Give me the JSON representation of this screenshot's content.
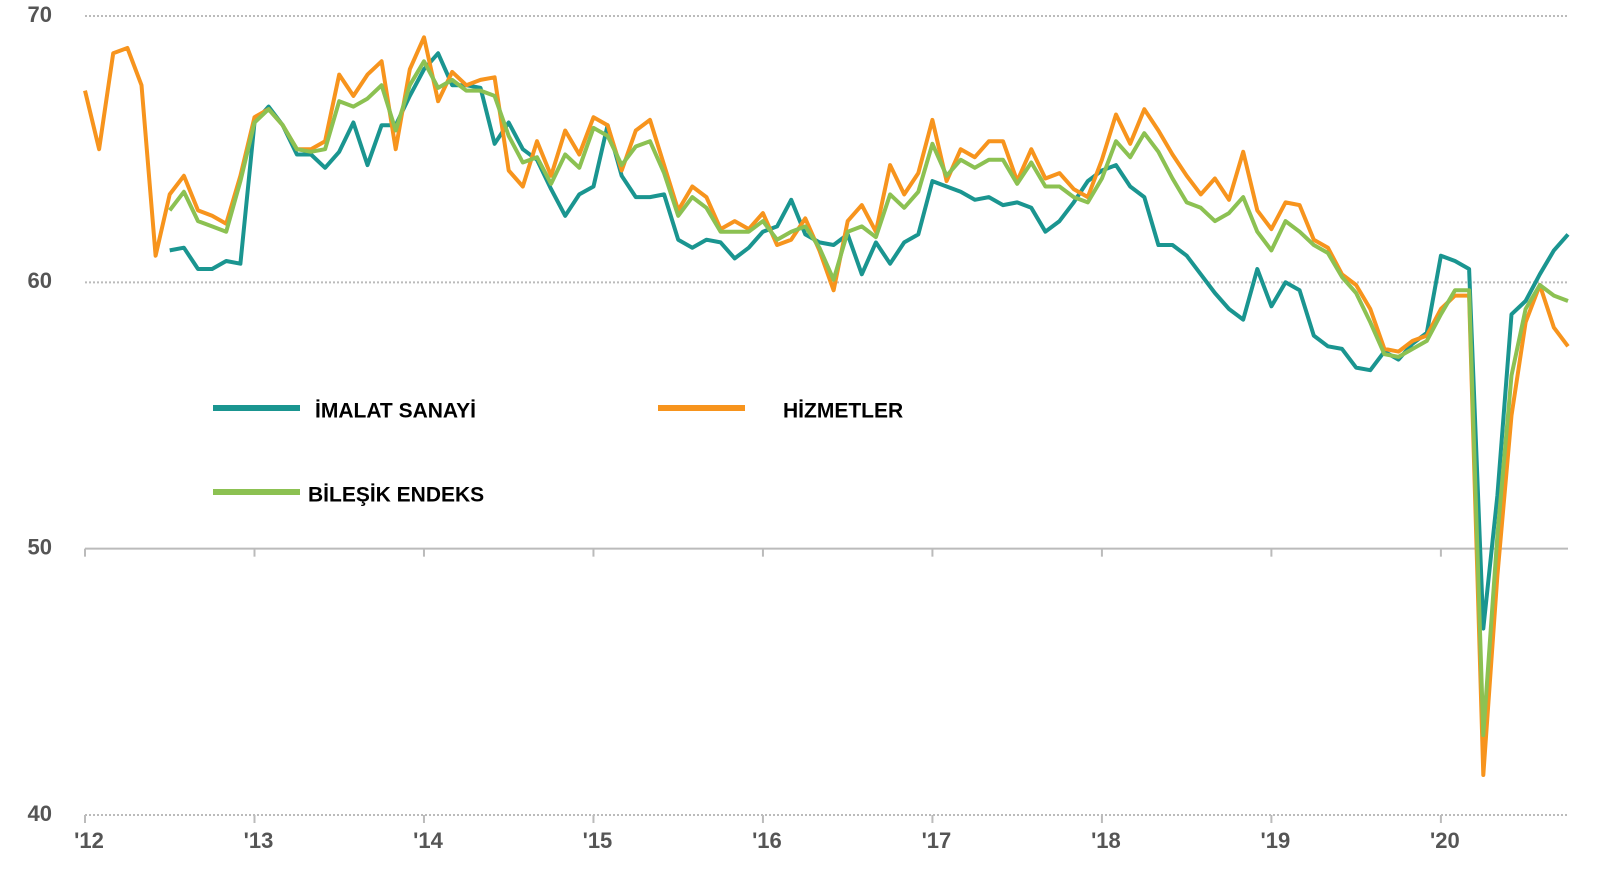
{
  "chart_data": {
    "type": "line",
    "categories": [
      "'12",
      null,
      null,
      null,
      null,
      null,
      null,
      null,
      null,
      null,
      null,
      null,
      "'13",
      null,
      null,
      null,
      null,
      null,
      null,
      null,
      null,
      null,
      null,
      null,
      "'14",
      null,
      null,
      null,
      null,
      null,
      null,
      null,
      null,
      null,
      null,
      null,
      "'15",
      null,
      null,
      null,
      null,
      null,
      null,
      null,
      null,
      null,
      null,
      null,
      "'16",
      null,
      null,
      null,
      null,
      null,
      null,
      null,
      null,
      null,
      null,
      null,
      "'17",
      null,
      null,
      null,
      null,
      null,
      null,
      null,
      null,
      null,
      null,
      null,
      "'18",
      null,
      null,
      null,
      null,
      null,
      null,
      null,
      null,
      null,
      null,
      null,
      "'19",
      null,
      null,
      null,
      null,
      null,
      null,
      null,
      null,
      null,
      null,
      null,
      "'20",
      null,
      null,
      null,
      null,
      null,
      null,
      null,
      null,
      null
    ],
    "series": [
      {
        "name": "İMALAT SANAYİ",
        "color": "#1a9590",
        "values": [
          null,
          null,
          null,
          null,
          null,
          null,
          61.2,
          61.3,
          60.5,
          60.5,
          60.8,
          60.7,
          66.0,
          66.6,
          65.9,
          64.8,
          64.8,
          64.3,
          64.9,
          66.0,
          64.4,
          65.9,
          65.9,
          67.0,
          68.0,
          68.6,
          67.4,
          67.4,
          67.3,
          65.2,
          66.0,
          65.0,
          64.6,
          63.5,
          62.5,
          63.3,
          63.6,
          65.9,
          64.0,
          63.2,
          63.2,
          63.3,
          61.6,
          61.3,
          61.6,
          61.5,
          60.9,
          61.3,
          61.9,
          62.1,
          63.1,
          61.8,
          61.5,
          61.4,
          61.8,
          60.3,
          61.5,
          60.7,
          61.5,
          61.8,
          63.8,
          63.6,
          63.4,
          63.1,
          63.2,
          62.9,
          63.0,
          62.8,
          61.9,
          62.3,
          63.0,
          63.8,
          64.2,
          64.4,
          63.6,
          63.2,
          61.4,
          61.4,
          61.0,
          60.3,
          59.6,
          59.0,
          58.6,
          60.5,
          59.1,
          60.0,
          59.7,
          58.0,
          57.6,
          57.5,
          56.8,
          56.7,
          57.4,
          57.1,
          57.7,
          58.1,
          61.0,
          60.8,
          60.5,
          47.0,
          52.0,
          58.8,
          59.3,
          60.3,
          61.2,
          61.8
        ]
      },
      {
        "name": "HİZMETLER",
        "color": "#f7941d",
        "values": [
          67.2,
          65.0,
          68.6,
          68.8,
          67.4,
          61.0,
          63.3,
          64.0,
          62.7,
          62.5,
          62.2,
          64.0,
          66.2,
          66.5,
          65.9,
          65.0,
          65.0,
          65.3,
          67.8,
          67.0,
          67.8,
          68.3,
          65.0,
          68.0,
          69.2,
          66.8,
          67.9,
          67.4,
          67.6,
          67.7,
          64.2,
          63.6,
          65.3,
          64.0,
          65.7,
          64.8,
          66.2,
          65.9,
          64.2,
          65.7,
          66.1,
          64.4,
          62.7,
          63.6,
          63.2,
          62.0,
          62.3,
          62.0,
          62.6,
          61.4,
          61.6,
          62.4,
          61.2,
          59.7,
          62.3,
          62.9,
          61.9,
          64.4,
          63.3,
          64.1,
          66.1,
          63.8,
          65.0,
          64.7,
          65.3,
          65.3,
          63.8,
          65.0,
          63.9,
          64.1,
          63.5,
          63.2,
          64.6,
          66.3,
          65.2,
          66.5,
          65.7,
          64.8,
          64.0,
          63.3,
          63.9,
          63.1,
          64.9,
          62.7,
          62.0,
          63.0,
          62.9,
          61.6,
          61.3,
          60.3,
          59.9,
          59.0,
          57.5,
          57.4,
          57.8,
          58.0,
          59.0,
          59.5,
          59.5,
          41.5,
          49.0,
          55.0,
          58.5,
          59.9,
          58.3,
          57.6
        ]
      },
      {
        "name": "BİLEŞİK ENDEKS",
        "color": "#8cc152",
        "values": [
          null,
          null,
          null,
          null,
          null,
          null,
          62.7,
          63.4,
          62.3,
          62.1,
          61.9,
          63.8,
          66.0,
          66.5,
          65.9,
          65.0,
          64.9,
          65.0,
          66.8,
          66.6,
          66.9,
          67.4,
          65.7,
          67.4,
          68.3,
          67.3,
          67.6,
          67.2,
          67.2,
          67.0,
          65.5,
          64.5,
          64.7,
          63.7,
          64.8,
          64.3,
          65.8,
          65.5,
          64.4,
          65.1,
          65.3,
          64.1,
          62.5,
          63.2,
          62.8,
          61.9,
          61.9,
          61.9,
          62.3,
          61.6,
          61.9,
          62.1,
          61.3,
          60.1,
          61.9,
          62.1,
          61.7,
          63.3,
          62.8,
          63.4,
          65.2,
          64.0,
          64.6,
          64.3,
          64.6,
          64.6,
          63.7,
          64.5,
          63.6,
          63.6,
          63.2,
          63.0,
          63.9,
          65.3,
          64.7,
          65.6,
          64.9,
          63.9,
          63.0,
          62.8,
          62.3,
          62.6,
          63.2,
          61.9,
          61.2,
          62.3,
          61.9,
          61.4,
          61.1,
          60.2,
          59.6,
          58.5,
          57.3,
          57.2,
          57.5,
          57.8,
          58.8,
          59.7,
          59.7,
          43.0,
          50.5,
          56.5,
          59.0,
          59.9,
          59.5,
          59.3
        ]
      }
    ],
    "ylim": [
      40,
      70
    ],
    "yticks": [
      40,
      50,
      60,
      70
    ],
    "grid": true
  }
}
